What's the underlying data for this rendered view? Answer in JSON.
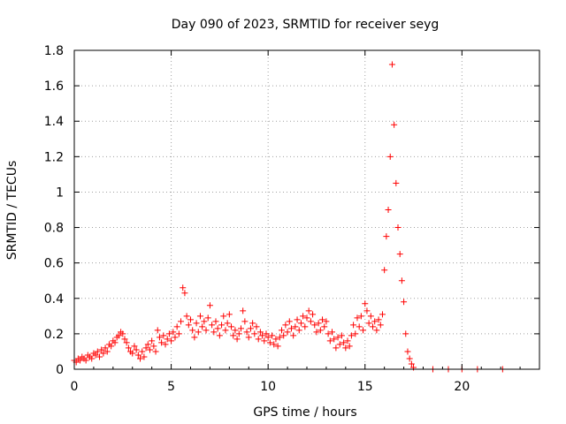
{
  "chart_data": {
    "type": "scatter",
    "title": "Day 090 of 2023, SRMTID for receiver seyg",
    "xlabel": "GPS time / hours",
    "ylabel": "SRMTID / TECUs",
    "xlim": [
      0,
      24
    ],
    "ylim": [
      0,
      1.8
    ],
    "xticks": [
      "0",
      "5",
      "10",
      "15",
      "20"
    ],
    "yticks": [
      "0",
      "0.2",
      "0.4",
      "0.6",
      "0.8",
      "1",
      "1.2",
      "1.4",
      "1.6",
      "1.8"
    ],
    "grid": true,
    "marker": "+",
    "series": [
      {
        "name": "SRMTID",
        "color": "#ff0000",
        "points": [
          [
            0.0,
            0.05
          ],
          [
            0.1,
            0.04
          ],
          [
            0.2,
            0.06
          ],
          [
            0.3,
            0.05
          ],
          [
            0.4,
            0.07
          ],
          [
            0.5,
            0.06
          ],
          [
            0.6,
            0.05
          ],
          [
            0.7,
            0.08
          ],
          [
            0.8,
            0.07
          ],
          [
            0.9,
            0.06
          ],
          [
            1.0,
            0.09
          ],
          [
            1.1,
            0.08
          ],
          [
            1.2,
            0.1
          ],
          [
            1.3,
            0.07
          ],
          [
            1.4,
            0.11
          ],
          [
            1.5,
            0.09
          ],
          [
            1.6,
            0.12
          ],
          [
            1.7,
            0.1
          ],
          [
            1.8,
            0.14
          ],
          [
            1.9,
            0.13
          ],
          [
            2.0,
            0.16
          ],
          [
            2.1,
            0.15
          ],
          [
            2.2,
            0.18
          ],
          [
            2.3,
            0.19
          ],
          [
            2.4,
            0.21
          ],
          [
            2.5,
            0.2
          ],
          [
            2.6,
            0.17
          ],
          [
            2.7,
            0.15
          ],
          [
            2.8,
            0.12
          ],
          [
            2.9,
            0.1
          ],
          [
            3.0,
            0.09
          ],
          [
            3.1,
            0.13
          ],
          [
            3.2,
            0.11
          ],
          [
            3.3,
            0.08
          ],
          [
            3.4,
            0.06
          ],
          [
            3.5,
            0.1
          ],
          [
            3.6,
            0.07
          ],
          [
            3.7,
            0.12
          ],
          [
            3.8,
            0.14
          ],
          [
            3.9,
            0.11
          ],
          [
            4.0,
            0.16
          ],
          [
            4.1,
            0.13
          ],
          [
            4.2,
            0.1
          ],
          [
            4.3,
            0.22
          ],
          [
            4.4,
            0.18
          ],
          [
            4.5,
            0.15
          ],
          [
            4.6,
            0.19
          ],
          [
            4.7,
            0.14
          ],
          [
            4.8,
            0.17
          ],
          [
            4.9,
            0.2
          ],
          [
            5.0,
            0.16
          ],
          [
            5.1,
            0.21
          ],
          [
            5.2,
            0.18
          ],
          [
            5.3,
            0.24
          ],
          [
            5.4,
            0.2
          ],
          [
            5.5,
            0.27
          ],
          [
            5.6,
            0.46
          ],
          [
            5.7,
            0.43
          ],
          [
            5.8,
            0.3
          ],
          [
            5.9,
            0.25
          ],
          [
            6.0,
            0.28
          ],
          [
            6.1,
            0.22
          ],
          [
            6.2,
            0.18
          ],
          [
            6.3,
            0.26
          ],
          [
            6.4,
            0.21
          ],
          [
            6.5,
            0.3
          ],
          [
            6.6,
            0.24
          ],
          [
            6.7,
            0.27
          ],
          [
            6.8,
            0.22
          ],
          [
            6.9,
            0.29
          ],
          [
            7.0,
            0.36
          ],
          [
            7.1,
            0.25
          ],
          [
            7.2,
            0.21
          ],
          [
            7.3,
            0.27
          ],
          [
            7.4,
            0.23
          ],
          [
            7.5,
            0.19
          ],
          [
            7.6,
            0.25
          ],
          [
            7.7,
            0.3
          ],
          [
            7.8,
            0.22
          ],
          [
            7.9,
            0.26
          ],
          [
            8.0,
            0.31
          ],
          [
            8.1,
            0.24
          ],
          [
            8.2,
            0.19
          ],
          [
            8.3,
            0.22
          ],
          [
            8.4,
            0.17
          ],
          [
            8.5,
            0.2
          ],
          [
            8.6,
            0.23
          ],
          [
            8.7,
            0.33
          ],
          [
            8.8,
            0.27
          ],
          [
            8.9,
            0.21
          ],
          [
            9.0,
            0.18
          ],
          [
            9.1,
            0.23
          ],
          [
            9.2,
            0.26
          ],
          [
            9.3,
            0.2
          ],
          [
            9.4,
            0.24
          ],
          [
            9.5,
            0.17
          ],
          [
            9.6,
            0.21
          ],
          [
            9.7,
            0.19
          ],
          [
            9.8,
            0.16
          ],
          [
            9.9,
            0.2
          ],
          [
            10.0,
            0.18
          ],
          [
            10.1,
            0.15
          ],
          [
            10.2,
            0.19
          ],
          [
            10.3,
            0.14
          ],
          [
            10.4,
            0.17
          ],
          [
            10.5,
            0.13
          ],
          [
            10.6,
            0.18
          ],
          [
            10.7,
            0.22
          ],
          [
            10.8,
            0.19
          ],
          [
            10.9,
            0.25
          ],
          [
            11.0,
            0.21
          ],
          [
            11.1,
            0.27
          ],
          [
            11.2,
            0.23
          ],
          [
            11.3,
            0.19
          ],
          [
            11.4,
            0.24
          ],
          [
            11.5,
            0.28
          ],
          [
            11.6,
            0.22
          ],
          [
            11.7,
            0.26
          ],
          [
            11.8,
            0.3
          ],
          [
            11.9,
            0.24
          ],
          [
            12.0,
            0.29
          ],
          [
            12.1,
            0.33
          ],
          [
            12.2,
            0.27
          ],
          [
            12.3,
            0.31
          ],
          [
            12.4,
            0.25
          ],
          [
            12.5,
            0.21
          ],
          [
            12.6,
            0.26
          ],
          [
            12.7,
            0.22
          ],
          [
            12.8,
            0.28
          ],
          [
            12.9,
            0.24
          ],
          [
            13.0,
            0.27
          ],
          [
            13.1,
            0.2
          ],
          [
            13.2,
            0.16
          ],
          [
            13.3,
            0.21
          ],
          [
            13.4,
            0.17
          ],
          [
            13.5,
            0.12
          ],
          [
            13.6,
            0.18
          ],
          [
            13.7,
            0.14
          ],
          [
            13.8,
            0.19
          ],
          [
            13.9,
            0.15
          ],
          [
            14.0,
            0.12
          ],
          [
            14.1,
            0.16
          ],
          [
            14.2,
            0.13
          ],
          [
            14.3,
            0.19
          ],
          [
            14.4,
            0.25
          ],
          [
            14.5,
            0.2
          ],
          [
            14.6,
            0.29
          ],
          [
            14.7,
            0.24
          ],
          [
            14.8,
            0.3
          ],
          [
            14.9,
            0.22
          ],
          [
            15.0,
            0.37
          ],
          [
            15.1,
            0.33
          ],
          [
            15.2,
            0.26
          ],
          [
            15.3,
            0.3
          ],
          [
            15.4,
            0.24
          ],
          [
            15.5,
            0.27
          ],
          [
            15.6,
            0.22
          ],
          [
            15.7,
            0.28
          ],
          [
            15.8,
            0.25
          ],
          [
            15.9,
            0.31
          ],
          [
            16.0,
            0.56
          ],
          [
            16.1,
            0.75
          ],
          [
            16.2,
            0.9
          ],
          [
            16.3,
            1.2
          ],
          [
            16.4,
            1.72
          ],
          [
            16.5,
            1.38
          ],
          [
            16.6,
            1.05
          ],
          [
            16.7,
            0.8
          ],
          [
            16.8,
            0.65
          ],
          [
            16.9,
            0.5
          ],
          [
            17.0,
            0.38
          ],
          [
            17.1,
            0.2
          ],
          [
            17.2,
            0.1
          ],
          [
            17.3,
            0.06
          ],
          [
            17.4,
            0.03
          ],
          [
            17.5,
            0.01
          ],
          [
            18.5,
            0.0
          ],
          [
            19.3,
            0.0
          ],
          [
            20.0,
            0.0
          ],
          [
            20.8,
            0.0
          ],
          [
            22.1,
            0.0
          ]
        ]
      }
    ]
  }
}
